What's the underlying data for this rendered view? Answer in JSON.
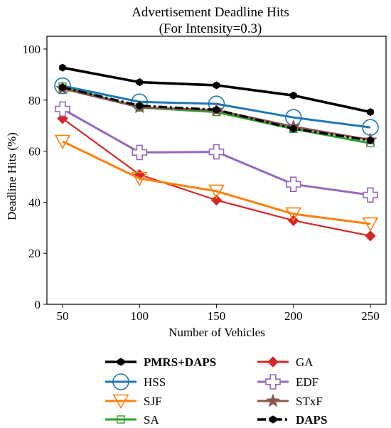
{
  "chart_data": {
    "type": "line",
    "title": "Advertisement Deadline Hits",
    "subtitle": "(For Intensity=0.3)",
    "xlabel": "Number of Vehicles",
    "ylabel": "Deadline Hits (%)",
    "categories": [
      50,
      100,
      150,
      200,
      250
    ],
    "xticks": [
      "50",
      "100",
      "150",
      "200",
      "250"
    ],
    "yticks": [
      "0",
      "20",
      "40",
      "60",
      "80",
      "100"
    ],
    "ylim": [
      0,
      105
    ],
    "grid": false,
    "legend_position": "bottom",
    "series": [
      {
        "name": "PMRS+DAPS",
        "color": "#000000",
        "marker": "hexagon",
        "style": "solid",
        "bold": true,
        "values": [
          92.7,
          87.0,
          85.8,
          81.8,
          75.3
        ]
      },
      {
        "name": "HSS",
        "color": "#1f77b4",
        "marker": "circle",
        "style": "solid",
        "bold": false,
        "values": [
          85.6,
          79.3,
          78.5,
          73.2,
          69.3
        ]
      },
      {
        "name": "SJF",
        "color": "#ff7f0e",
        "marker": "triangle-down",
        "style": "solid",
        "bold": false,
        "values": [
          63.8,
          49.3,
          44.3,
          35.4,
          31.5
        ]
      },
      {
        "name": "SA",
        "color": "#2ca02c",
        "marker": "square",
        "style": "solid",
        "bold": false,
        "values": [
          85.3,
          77.1,
          75.3,
          68.7,
          63.1
        ]
      },
      {
        "name": "GA",
        "color": "#d62728",
        "marker": "diamond",
        "style": "solid",
        "bold": false,
        "values": [
          72.8,
          50.8,
          40.8,
          32.8,
          26.8
        ]
      },
      {
        "name": "EDF",
        "color": "#9467bd",
        "marker": "plus",
        "style": "solid",
        "bold": false,
        "values": [
          76.5,
          59.5,
          59.7,
          47.0,
          42.8
        ]
      },
      {
        "name": "STxF",
        "color": "#8c564b",
        "marker": "star",
        "style": "solid",
        "bold": false,
        "values": [
          84.5,
          77.2,
          76.0,
          69.6,
          64.4
        ]
      },
      {
        "name": "DAPS",
        "color": "#000000",
        "marker": "hexagon",
        "style": "dashdot",
        "bold": true,
        "values": [
          85.0,
          77.8,
          76.2,
          68.8,
          64.2
        ]
      }
    ]
  }
}
